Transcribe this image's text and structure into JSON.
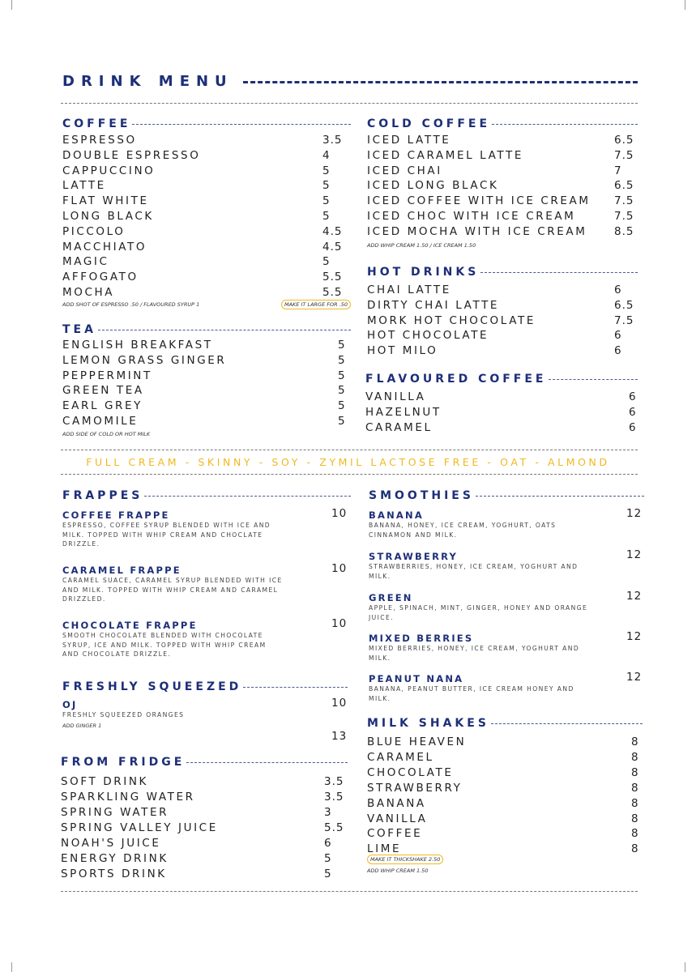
{
  "title": "DRINK MENU",
  "accent_color": "#1d2f78",
  "highlight_color": "#f0b820",
  "coffee": {
    "title": "COFFEE",
    "items": [
      [
        "ESPRESSO",
        "3.5"
      ],
      [
        "DOUBLE ESPRESSO",
        "4"
      ],
      [
        "CAPPUCCINO",
        "5"
      ],
      [
        "LATTE",
        "5"
      ],
      [
        "FLAT WHITE",
        "5"
      ],
      [
        "LONG BLACK",
        "5"
      ],
      [
        "PICCOLO",
        "4.5"
      ],
      [
        "MACCHIATO",
        "4.5"
      ],
      [
        "MAGIC",
        "5"
      ],
      [
        "AFFOGATO",
        "5.5"
      ],
      [
        "MOCHA",
        "5.5"
      ]
    ],
    "note": "ADD SHOT OF ESPRESSO .50 /  FLAVOURED SYRUP 1",
    "pill": "MAKE IT LARGE FOR .50"
  },
  "tea": {
    "title": "TEA",
    "items": [
      [
        "ENGLISH BREAKFAST",
        "5"
      ],
      [
        "LEMON GRASS GINGER",
        "5"
      ],
      [
        "PEPPERMINT",
        "5"
      ],
      [
        "GREEN TEA",
        "5"
      ],
      [
        "EARL GREY",
        "5"
      ],
      [
        "CAMOMILE",
        "5"
      ]
    ],
    "note": "ADD SIDE OF COLD OR HOT MILK"
  },
  "cold_coffee": {
    "title": "COLD COFFEE",
    "items": [
      [
        "ICED LATTE",
        "6.5"
      ],
      [
        "ICED CARAMEL LATTE",
        "7.5"
      ],
      [
        "ICED CHAI",
        "7"
      ],
      [
        "ICED LONG BLACK",
        "6.5"
      ],
      [
        "ICED COFFEE WITH ICE CREAM",
        "7.5"
      ],
      [
        "ICED CHOC WITH ICE CREAM",
        "7.5"
      ],
      [
        "ICED MOCHA WITH ICE CREAM",
        "8.5"
      ]
    ],
    "note": "ADD WHIP CREAM 1.50 / ICE CREAM 1.50"
  },
  "hot_drinks": {
    "title": "HOT DRINKS",
    "items": [
      [
        "CHAI LATTE",
        "6"
      ],
      [
        "DIRTY CHAI LATTE",
        "6.5"
      ],
      [
        "MORK HOT CHOCOLATE",
        "7.5"
      ],
      [
        "HOT CHOCOLATE",
        "6"
      ],
      [
        "HOT MILO",
        "6"
      ]
    ]
  },
  "flavoured_coffee": {
    "title": "FLAVOURED COFFEE",
    "items": [
      [
        "VANILLA",
        "6"
      ],
      [
        "HAZELNUT",
        "6"
      ],
      [
        "CARAMEL",
        "6"
      ]
    ]
  },
  "milk_options": "FULL CREAM - SKINNY - SOY - ZYMIL LACTOSE FREE - OAT - ALMOND",
  "frappes": {
    "title": "FRAPPES",
    "items": [
      {
        "name": "COFFEE FRAPPE",
        "desc": "ESPRESSO, COFFEE SYRUP BLENDED WITH ICE AND MILK. TOPPED WITH WHIP CREAM AND CHOCLATE DRIZZLE.",
        "price": "10"
      },
      {
        "name": "CARAMEL FRAPPE",
        "desc": "CARAMEL SUACE, CARAMEL SYRUP BLENDED WITH ICE AND MILK. TOPPED WITH WHIP CREAM AND CARAMEL DRIZZLED.",
        "price": "10"
      },
      {
        "name": "CHOCOLATE FRAPPE",
        "desc": "SMOOTH CHOCOLATE BLENDED WITH CHOCOLATE SYRUP, ICE AND MILK. TOPPED WITH WHIP CREAM AND CHOCOLATE DRIZZLE.",
        "price": "10"
      }
    ]
  },
  "smoothies": {
    "title": "SMOOTHIES",
    "items": [
      {
        "name": "BANANA",
        "desc": "BANANA, HONEY, ICE CREAM, YOGHURT, OATS CINNAMON AND MILK.",
        "price": "12"
      },
      {
        "name": "STRAWBERRY",
        "desc": "STRAWBERRIES, HONEY, ICE CREAM, YOGHURT AND MILK.",
        "price": "12"
      },
      {
        "name": "GREEN",
        "desc": "APPLE, SPINACH, MINT, GINGER, HONEY AND ORANGE JUICE.",
        "price": "12"
      },
      {
        "name": "MIXED BERRIES",
        "desc": "MIXED BERRIES, HONEY, ICE CREAM, YOGHURT AND MILK.",
        "price": "12"
      },
      {
        "name": "PEANUT NANA",
        "desc": "BANANA, PEANUT BUTTER, ICE CREAM HONEY AND MILK.",
        "price": "12"
      }
    ]
  },
  "freshly_squeezed": {
    "title": "FRESHLY SQUEEZED",
    "items": [
      {
        "name": "OJ",
        "desc": "FRESHLY SQUEEZED ORANGES",
        "price": "10"
      }
    ],
    "note": "ADD GINGER 1",
    "extra_price": "13"
  },
  "from_fridge": {
    "title": "FROM FRIDGE",
    "items": [
      [
        "SOFT DRINK",
        "3.5"
      ],
      [
        "SPARKLING WATER",
        "3.5"
      ],
      [
        "SPRING WATER",
        "3"
      ],
      [
        "SPRING VALLEY JUICE",
        "5.5"
      ],
      [
        "NOAH'S JUICE",
        "6"
      ],
      [
        "ENERGY DRINK",
        "5"
      ],
      [
        "SPORTS DRINK",
        "5"
      ]
    ]
  },
  "milk_shakes": {
    "title": "MILK SHAKES",
    "items": [
      [
        "BLUE HEAVEN",
        "8"
      ],
      [
        "CARAMEL",
        "8"
      ],
      [
        "CHOCOLATE",
        "8"
      ],
      [
        "STRAWBERRY",
        "8"
      ],
      [
        "BANANA",
        "8"
      ],
      [
        "VANILLA",
        "8"
      ],
      [
        "COFFEE",
        "8"
      ],
      [
        "LIME",
        "8"
      ]
    ],
    "pill": "MAKE IT THICKSHAKE 2.50",
    "note": "ADD WHIP CREAM 1.50"
  }
}
